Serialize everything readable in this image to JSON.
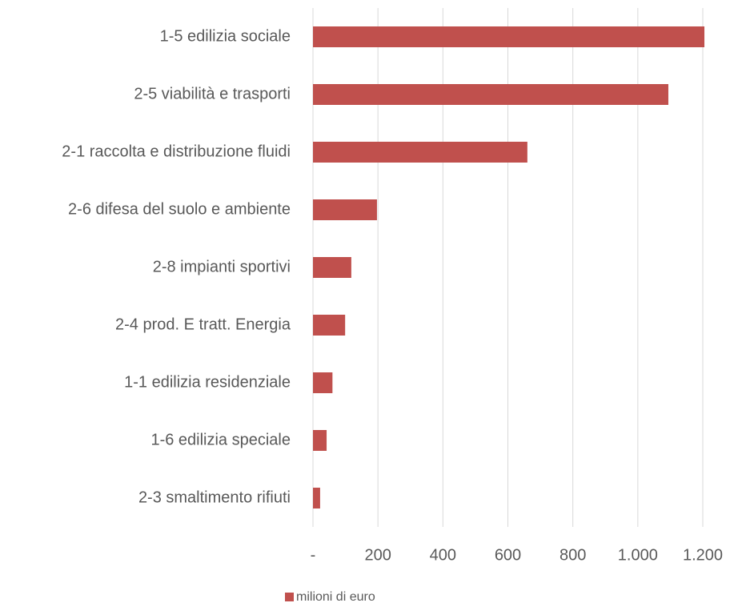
{
  "chart_data": {
    "type": "hbar",
    "categories": [
      "1-5 edilizia sociale",
      "2-5 viabilità e trasporti",
      "2-1 raccolta e distribuzione fluidi",
      "2-6 difesa del suolo e ambiente",
      "2-8 impianti sportivi",
      "2-4 prod. E tratt. Energia",
      "1-1 edilizia residenziale",
      "1-6 edilizia speciale",
      "2-3 smaltimento rifiuti"
    ],
    "series": [
      {
        "name": "milioni di euro",
        "color": "#c0504d",
        "values": [
          1205,
          1094,
          660,
          197,
          118,
          99,
          60,
          42,
          22
        ]
      }
    ],
    "xlim": [
      0,
      1200
    ],
    "xticks": [
      {
        "value": 0,
        "label": "-"
      },
      200,
      400,
      600,
      800,
      {
        "value": 1000,
        "label": "1.000"
      },
      {
        "value": 1200,
        "label": "1.200"
      }
    ],
    "grid": true,
    "legend": "bottom"
  }
}
